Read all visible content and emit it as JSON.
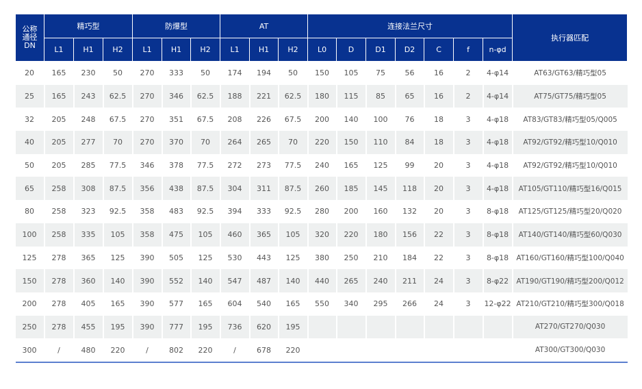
{
  "header": {
    "dn": [
      "公称",
      "通径",
      "DN"
    ],
    "groups": [
      "精巧型",
      "防爆型",
      "AT",
      "连接法兰尺寸"
    ],
    "actuator": "执行器匹配",
    "sub": [
      "L1",
      "H1",
      "H2",
      "L1",
      "H1",
      "H2",
      "L1",
      "H1",
      "H2",
      "L0",
      "D",
      "D1",
      "D2",
      "C",
      "f",
      "n-φd"
    ]
  },
  "rows": [
    [
      "20",
      "165",
      "230",
      "50",
      "270",
      "333",
      "50",
      "174",
      "194",
      "50",
      "150",
      "105",
      "75",
      "56",
      "16",
      "2",
      "4-φ14",
      "AT63/GT63/精巧型05"
    ],
    [
      "25",
      "165",
      "243",
      "62.5",
      "270",
      "346",
      "62.5",
      "188",
      "221",
      "62.5",
      "180",
      "115",
      "85",
      "65",
      "16",
      "2",
      "4-φ14",
      "AT75/GT75/精巧型05"
    ],
    [
      "32",
      "205",
      "248",
      "67.5",
      "270",
      "351",
      "67.5",
      "208",
      "226",
      "67.5",
      "200",
      "140",
      "100",
      "76",
      "18",
      "3",
      "4-φ18",
      "AT83/GT83/精巧型05/Q005"
    ],
    [
      "40",
      "205",
      "277",
      "70",
      "270",
      "370",
      "70",
      "264",
      "265",
      "70",
      "220",
      "150",
      "110",
      "84",
      "18",
      "3",
      "4-φ18",
      "AT92/GT92/精巧型10/Q010"
    ],
    [
      "50",
      "205",
      "285",
      "77.5",
      "346",
      "378",
      "77.5",
      "272",
      "273",
      "77.5",
      "240",
      "165",
      "125",
      "99",
      "20",
      "3",
      "4-φ18",
      "AT92/GT92/精巧型10/Q010"
    ],
    [
      "65",
      "258",
      "308",
      "87.5",
      "356",
      "438",
      "87.5",
      "304",
      "311",
      "87.5",
      "260",
      "185",
      "145",
      "118",
      "20",
      "3",
      "4-φ18",
      "AT105/GT110/精巧型16/Q015"
    ],
    [
      "80",
      "258",
      "323",
      "92.5",
      "358",
      "483",
      "92.5",
      "394",
      "333",
      "92.5",
      "280",
      "200",
      "160",
      "132",
      "20",
      "3",
      "8-φ18",
      "AT125/GT125/精巧型20/Q020"
    ],
    [
      "100",
      "258",
      "335",
      "105",
      "358",
      "475",
      "105",
      "460",
      "365",
      "105",
      "320",
      "220",
      "180",
      "156",
      "22",
      "3",
      "8-φ18",
      "AT140/GT140/精巧型60/Q030"
    ],
    [
      "125",
      "278",
      "365",
      "125",
      "390",
      "505",
      "125",
      "530",
      "443",
      "125",
      "380",
      "250",
      "210",
      "184",
      "22",
      "3",
      "8-φ18",
      "AT160/GT160/精巧型100/Q040"
    ],
    [
      "150",
      "278",
      "360",
      "140",
      "390",
      "552",
      "140",
      "547",
      "487",
      "140",
      "440",
      "265",
      "240",
      "211",
      "24",
      "3",
      "8-φ22",
      "AT190/GT190/精巧型200/Q012"
    ],
    [
      "200",
      "278",
      "405",
      "165",
      "390",
      "577",
      "165",
      "604",
      "540",
      "165",
      "550",
      "340",
      "295",
      "266",
      "24",
      "3",
      "12-φ22",
      "AT210/GT210/精巧型300/Q018"
    ],
    [
      "250",
      "278",
      "455",
      "195",
      "390",
      "777",
      "195",
      "736",
      "620",
      "195",
      "",
      "",
      "",
      "",
      "",
      "",
      "",
      "AT270/GT270/Q030"
    ],
    [
      "300",
      "/",
      "480",
      "220",
      "/",
      "802",
      "220",
      "/",
      "678",
      "220",
      "",
      "",
      "",
      "",
      "",
      "",
      "",
      "AT300/GT300/Q030"
    ]
  ]
}
